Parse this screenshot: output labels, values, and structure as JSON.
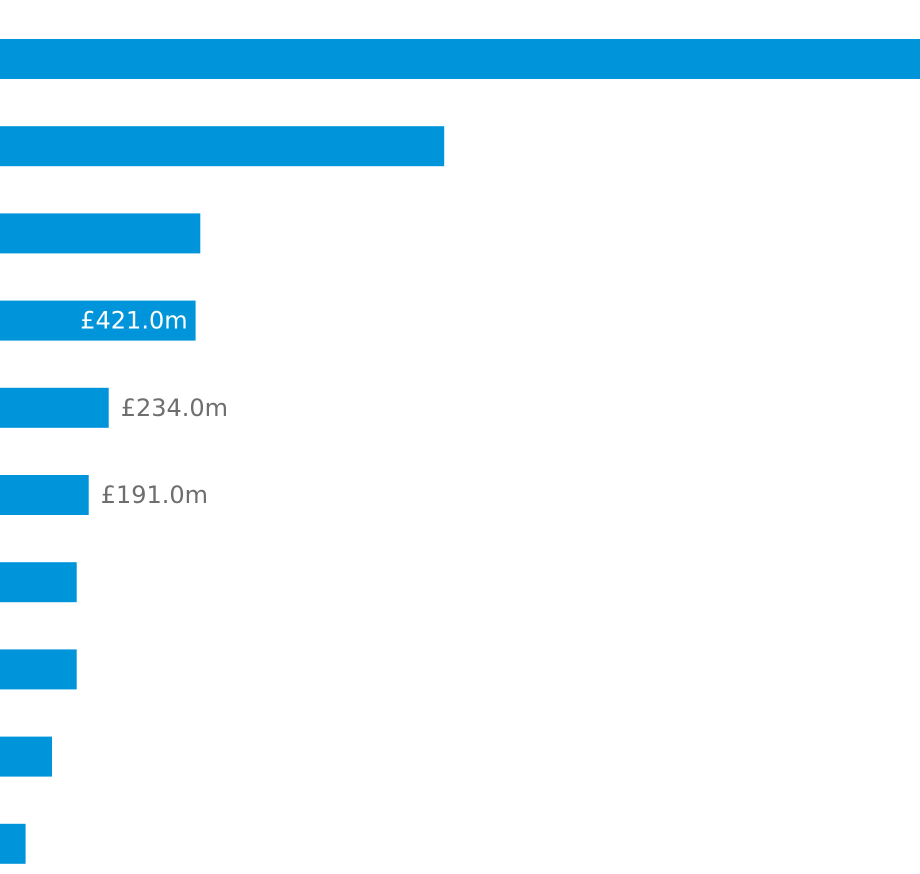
{
  "chart_data": {
    "type": "bar",
    "orientation": "horizontal",
    "title": "",
    "xlabel": "",
    "ylabel": "",
    "grid": false,
    "legend": "none",
    "values": [
      1980,
      956,
      431,
      421,
      234,
      191,
      165,
      165,
      112,
      55
    ],
    "data_labels": [
      "",
      "",
      "",
      "£421.0m",
      "£234.0m",
      "£191.0m",
      "",
      "",
      "",
      ""
    ],
    "data_label_placement": [
      "",
      "",
      "",
      "inside",
      "outside",
      "outside",
      "",
      "",
      "",
      ""
    ]
  },
  "colors": {
    "bar": "#0095DA",
    "label_inside": "#ffffff",
    "label_outside": "#6e6e6e",
    "background": "#ffffff"
  }
}
